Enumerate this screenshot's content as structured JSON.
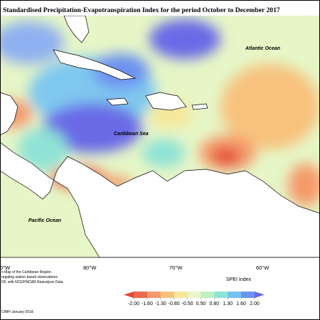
{
  "header": {
    "title": "Standardised Precipitation-Evapotranspiration Index for the period October to December 2017"
  },
  "map": {
    "labels": [
      "Atlantic Ocean",
      "Caribbean Sea",
      "Pacific Ocean"
    ],
    "longitudes": [
      "0°W",
      "80°W",
      "70°W",
      "60°W"
    ]
  },
  "legend": {
    "title": "SPEI Index",
    "ticks": [
      {
        "value": -2,
        "label": "-2.00"
      },
      {
        "value": -1.6,
        "label": "-1.60"
      },
      {
        "value": -1.3,
        "label": "-1.30"
      },
      {
        "value": -0.8,
        "label": "-0.80"
      },
      {
        "value": -0.5,
        "label": "-0.50"
      },
      {
        "value": 0.5,
        "label": "0.50"
      },
      {
        "value": 0.8,
        "label": "0.80"
      },
      {
        "value": 1.3,
        "label": "1.30"
      },
      {
        "value": 1.6,
        "label": "1.60"
      },
      {
        "value": 2,
        "label": "2.00"
      }
    ],
    "colors": [
      "#e4473a",
      "#ec6a52",
      "#f59a6a",
      "#f8c27e",
      "#f7e79a",
      "#eaf6c8",
      "#bff0bf",
      "#8fe3d6",
      "#71c2f0",
      "#6d92f0",
      "#6a6ae6"
    ]
  },
  "credits": [
    "n Map of the Caribbean Region.",
    "regating station based observations",
    "DF, with NCEP/NCAR Reanalysis Data.",
    "CIMH January-2018"
  ]
}
